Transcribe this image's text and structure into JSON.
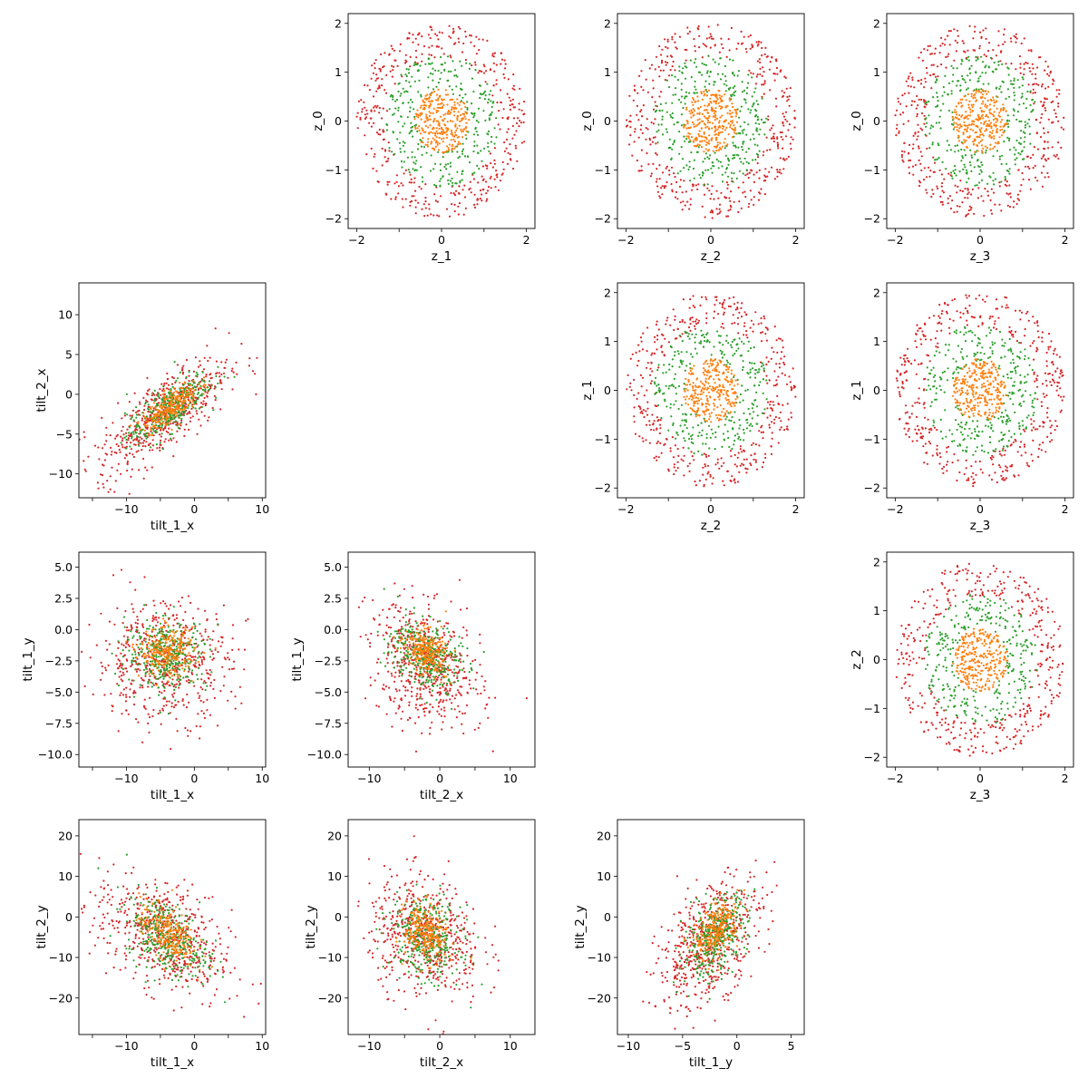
{
  "chart_data": [
    {
      "type": "scatter",
      "xlabel": "z_1",
      "ylabel": "z_0",
      "xlim": [
        -2.2,
        2.2
      ],
      "ylim": [
        -2.2,
        2.2
      ],
      "xticks": [
        -2,
        -1,
        0,
        1,
        2
      ],
      "yticks": [
        -2,
        -1,
        0,
        1,
        2
      ],
      "xtick_labels": [
        "−2",
        "0",
        "2"
      ],
      "xtick_label_values": [
        -2,
        0,
        2
      ],
      "ytick_labels": [
        "−2",
        "−1",
        "0",
        "1",
        "2"
      ],
      "ytick_label_values": [
        -2,
        -1,
        0,
        1,
        2
      ],
      "series_summary": [
        {
          "color": "#d62728",
          "shape": "ring",
          "center": [
            0,
            0
          ],
          "radius_range": [
            1.3,
            2.0
          ],
          "n": 420
        },
        {
          "color": "#2ca02c",
          "shape": "ring",
          "center": [
            0,
            0
          ],
          "radius_range": [
            0.6,
            1.35
          ],
          "n": 300
        },
        {
          "color": "#ff7f0e",
          "shape": "disk",
          "center": [
            0,
            0
          ],
          "radius_range": [
            0,
            0.65
          ],
          "n": 280
        }
      ]
    },
    {
      "type": "scatter",
      "xlabel": "z_2",
      "ylabel": "z_0",
      "xlim": [
        -2.2,
        2.2
      ],
      "ylim": [
        -2.2,
        2.2
      ],
      "xticks": [
        -2,
        -1,
        0,
        1,
        2
      ],
      "yticks": [
        -2,
        -1,
        0,
        1,
        2
      ],
      "xtick_labels": [
        "−2",
        "0",
        "2"
      ],
      "xtick_label_values": [
        -2,
        0,
        2
      ],
      "ytick_labels": [
        "−2",
        "−1",
        "0",
        "1",
        "2"
      ],
      "ytick_label_values": [
        -2,
        -1,
        0,
        1,
        2
      ],
      "series_summary": [
        {
          "color": "#d62728",
          "shape": "ring",
          "center": [
            0,
            0
          ],
          "radius_range": [
            1.3,
            2.0
          ],
          "n": 420
        },
        {
          "color": "#2ca02c",
          "shape": "ring",
          "center": [
            0,
            0
          ],
          "radius_range": [
            0.6,
            1.35
          ],
          "n": 300
        },
        {
          "color": "#ff7f0e",
          "shape": "disk",
          "center": [
            0,
            0
          ],
          "radius_range": [
            0,
            0.65
          ],
          "n": 280
        }
      ]
    },
    {
      "type": "scatter",
      "xlabel": "z_3",
      "ylabel": "z_0",
      "xlim": [
        -2.2,
        2.2
      ],
      "ylim": [
        -2.2,
        2.2
      ],
      "xticks": [
        -2,
        -1,
        0,
        1,
        2
      ],
      "yticks": [
        -2,
        -1,
        0,
        1,
        2
      ],
      "xtick_labels": [
        "−2",
        "0",
        "2"
      ],
      "xtick_label_values": [
        -2,
        0,
        2
      ],
      "ytick_labels": [
        "−2",
        "−1",
        "0",
        "1",
        "2"
      ],
      "ytick_label_values": [
        -2,
        -1,
        0,
        1,
        2
      ],
      "series_summary": [
        {
          "color": "#d62728",
          "shape": "ring",
          "center": [
            0,
            0
          ],
          "radius_range": [
            1.3,
            2.0
          ],
          "n": 420
        },
        {
          "color": "#2ca02c",
          "shape": "ring",
          "center": [
            0,
            0
          ],
          "radius_range": [
            0.6,
            1.35
          ],
          "n": 300
        },
        {
          "color": "#ff7f0e",
          "shape": "disk",
          "center": [
            0,
            0
          ],
          "radius_range": [
            0,
            0.65
          ],
          "n": 280
        }
      ]
    },
    {
      "type": "scatter",
      "xlabel": "tilt_1_x",
      "ylabel": "tilt_2_x",
      "xlim": [
        -17,
        10.5
      ],
      "ylim": [
        -13,
        14
      ],
      "xticks": [
        -15,
        -10,
        -5,
        0,
        5,
        10
      ],
      "yticks": [
        -10,
        -5,
        0,
        5,
        10
      ],
      "xtick_labels": [
        "−10",
        "0",
        "10"
      ],
      "xtick_label_values": [
        -10,
        0,
        10
      ],
      "ytick_labels": [
        "−10",
        "−5",
        "0",
        "5",
        "10"
      ],
      "ytick_label_values": [
        -10,
        -5,
        0,
        5,
        10
      ],
      "series_summary": [
        {
          "color": "#d62728",
          "shape": "gaussian",
          "center": [
            -4.5,
            -2.5
          ],
          "spread": [
            4.8,
            3.6
          ],
          "correlation": 0.75,
          "n": 550
        },
        {
          "color": "#2ca02c",
          "shape": "gaussian",
          "center": [
            -4,
            -2
          ],
          "spread": [
            3.0,
            2.3
          ],
          "correlation": 0.75,
          "n": 350
        },
        {
          "color": "#ff7f0e",
          "shape": "gaussian",
          "center": [
            -3.5,
            -1.5
          ],
          "spread": [
            2.0,
            1.5
          ],
          "correlation": 0.75,
          "n": 250
        }
      ]
    },
    {
      "type": "scatter",
      "xlabel": "z_2",
      "ylabel": "z_1",
      "xlim": [
        -2.2,
        2.2
      ],
      "ylim": [
        -2.2,
        2.2
      ],
      "xticks": [
        -2,
        -1,
        0,
        1,
        2
      ],
      "yticks": [
        -2,
        -1,
        0,
        1,
        2
      ],
      "xtick_labels": [
        "−2",
        "0",
        "2"
      ],
      "xtick_label_values": [
        -2,
        0,
        2
      ],
      "ytick_labels": [
        "−2",
        "−1",
        "0",
        "1",
        "2"
      ],
      "ytick_label_values": [
        -2,
        -1,
        0,
        1,
        2
      ],
      "series_summary": [
        {
          "color": "#d62728",
          "shape": "ring",
          "center": [
            0,
            0
          ],
          "radius_range": [
            1.3,
            2.0
          ],
          "n": 420
        },
        {
          "color": "#2ca02c",
          "shape": "ring",
          "center": [
            0,
            0
          ],
          "radius_range": [
            0.6,
            1.35
          ],
          "n": 300
        },
        {
          "color": "#ff7f0e",
          "shape": "disk",
          "center": [
            0,
            0
          ],
          "radius_range": [
            0,
            0.65
          ],
          "n": 280
        }
      ]
    },
    {
      "type": "scatter",
      "xlabel": "z_3",
      "ylabel": "z_1",
      "xlim": [
        -2.2,
        2.2
      ],
      "ylim": [
        -2.2,
        2.2
      ],
      "xticks": [
        -2,
        -1,
        0,
        1,
        2
      ],
      "yticks": [
        -2,
        -1,
        0,
        1,
        2
      ],
      "xtick_labels": [
        "−2",
        "0",
        "2"
      ],
      "xtick_label_values": [
        -2,
        0,
        2
      ],
      "ytick_labels": [
        "−2",
        "−1",
        "0",
        "1",
        "2"
      ],
      "ytick_label_values": [
        -2,
        -1,
        0,
        1,
        2
      ],
      "series_summary": [
        {
          "color": "#d62728",
          "shape": "ring",
          "center": [
            0,
            0
          ],
          "radius_range": [
            1.3,
            2.0
          ],
          "n": 420
        },
        {
          "color": "#2ca02c",
          "shape": "ring",
          "center": [
            0,
            0
          ],
          "radius_range": [
            0.6,
            1.35
          ],
          "n": 300
        },
        {
          "color": "#ff7f0e",
          "shape": "disk",
          "center": [
            0,
            0
          ],
          "radius_range": [
            0,
            0.65
          ],
          "n": 280
        }
      ]
    },
    {
      "type": "scatter",
      "xlabel": "tilt_1_x",
      "ylabel": "tilt_1_y",
      "xlim": [
        -17,
        10.5
      ],
      "ylim": [
        -11,
        6.2
      ],
      "xticks": [
        -15,
        -10,
        -5,
        0,
        5,
        10
      ],
      "yticks": [
        -10,
        -7.5,
        -5,
        -2.5,
        0,
        2.5,
        5
      ],
      "xtick_labels": [
        "−10",
        "0",
        "10"
      ],
      "xtick_label_values": [
        -10,
        0,
        10
      ],
      "ytick_labels": [
        "−10.0",
        "−7.5",
        "−5.0",
        "−2.5",
        "0.0",
        "2.5",
        "5.0"
      ],
      "ytick_label_values": [
        -10,
        -7.5,
        -5,
        -2.5,
        0,
        2.5,
        5
      ],
      "series_summary": [
        {
          "color": "#d62728",
          "shape": "gaussian",
          "center": [
            -4.5,
            -2.5
          ],
          "spread": [
            5.0,
            2.4
          ],
          "correlation": 0,
          "n": 550
        },
        {
          "color": "#2ca02c",
          "shape": "gaussian",
          "center": [
            -4,
            -2
          ],
          "spread": [
            3.0,
            1.4
          ],
          "correlation": 0,
          "n": 350
        },
        {
          "color": "#ff7f0e",
          "shape": "gaussian",
          "center": [
            -4,
            -1.8
          ],
          "spread": [
            2.0,
            0.95
          ],
          "correlation": 0,
          "n": 250
        }
      ]
    },
    {
      "type": "scatter",
      "xlabel": "tilt_2_x",
      "ylabel": "tilt_1_y",
      "xlim": [
        -13,
        13.5
      ],
      "ylim": [
        -11,
        6.2
      ],
      "xticks": [
        -10,
        -5,
        0,
        5,
        10
      ],
      "yticks": [
        -10,
        -7.5,
        -5,
        -2.5,
        0,
        2.5,
        5
      ],
      "xtick_labels": [
        "−10",
        "0",
        "10"
      ],
      "xtick_label_values": [
        -10,
        0,
        10
      ],
      "ytick_labels": [
        "−10.0",
        "−7.5",
        "−5.0",
        "−2.5",
        "0.0",
        "2.5",
        "5.0"
      ],
      "ytick_label_values": [
        -10,
        -7.5,
        -5,
        -2.5,
        0,
        2.5,
        5
      ],
      "series_summary": [
        {
          "color": "#d62728",
          "shape": "gaussian",
          "center": [
            -2,
            -3
          ],
          "spread": [
            4.0,
            2.5
          ],
          "correlation": -0.3,
          "n": 550
        },
        {
          "color": "#2ca02c",
          "shape": "gaussian",
          "center": [
            -2,
            -2
          ],
          "spread": [
            2.5,
            1.4
          ],
          "correlation": -0.3,
          "n": 350
        },
        {
          "color": "#ff7f0e",
          "shape": "gaussian",
          "center": [
            -2,
            -1.7
          ],
          "spread": [
            1.5,
            0.9
          ],
          "correlation": -0.3,
          "n": 250
        }
      ]
    },
    {
      "type": "scatter",
      "xlabel": "z_3",
      "ylabel": "z_2",
      "xlim": [
        -2.2,
        2.2
      ],
      "ylim": [
        -2.2,
        2.2
      ],
      "xticks": [
        -2,
        -1,
        0,
        1,
        2
      ],
      "yticks": [
        -2,
        -1,
        0,
        1,
        2
      ],
      "xtick_labels": [
        "−2",
        "0",
        "2"
      ],
      "xtick_label_values": [
        -2,
        0,
        2
      ],
      "ytick_labels": [
        "−2",
        "−1",
        "0",
        "1",
        "2"
      ],
      "ytick_label_values": [
        -2,
        -1,
        0,
        1,
        2
      ],
      "series_summary": [
        {
          "color": "#d62728",
          "shape": "ring",
          "center": [
            0,
            0
          ],
          "radius_range": [
            1.3,
            2.0
          ],
          "n": 420
        },
        {
          "color": "#2ca02c",
          "shape": "ring",
          "center": [
            0,
            0
          ],
          "radius_range": [
            0.6,
            1.35
          ],
          "n": 300
        },
        {
          "color": "#ff7f0e",
          "shape": "disk",
          "center": [
            0,
            0
          ],
          "radius_range": [
            0,
            0.65
          ],
          "n": 280
        }
      ]
    },
    {
      "type": "scatter",
      "xlabel": "tilt_1_x",
      "ylabel": "tilt_2_y",
      "xlim": [
        -17,
        10.5
      ],
      "ylim": [
        -29,
        24
      ],
      "xticks": [
        -15,
        -10,
        -5,
        0,
        5,
        10
      ],
      "yticks": [
        -20,
        -10,
        0,
        10,
        20
      ],
      "xtick_labels": [
        "−10",
        "0",
        "10"
      ],
      "xtick_label_values": [
        -10,
        0,
        10
      ],
      "ytick_labels": [
        "−20",
        "−10",
        "0",
        "10",
        "20"
      ],
      "ytick_label_values": [
        -20,
        -10,
        0,
        10,
        20
      ],
      "series_summary": [
        {
          "color": "#d62728",
          "shape": "gaussian",
          "center": [
            -4.5,
            -5
          ],
          "spread": [
            5.0,
            7.5
          ],
          "correlation": -0.45,
          "n": 550
        },
        {
          "color": "#2ca02c",
          "shape": "gaussian",
          "center": [
            -4,
            -5
          ],
          "spread": [
            3.0,
            5.0
          ],
          "correlation": -0.45,
          "n": 350
        },
        {
          "color": "#ff7f0e",
          "shape": "gaussian",
          "center": [
            -4,
            -4
          ],
          "spread": [
            2.0,
            3.5
          ],
          "correlation": -0.45,
          "n": 250
        }
      ]
    },
    {
      "type": "scatter",
      "xlabel": "tilt_2_x",
      "ylabel": "tilt_2_y",
      "xlim": [
        -13,
        13.5
      ],
      "ylim": [
        -29,
        24
      ],
      "xticks": [
        -10,
        -5,
        0,
        5,
        10
      ],
      "yticks": [
        -20,
        -10,
        0,
        10,
        20
      ],
      "xtick_labels": [
        "−10",
        "0",
        "10"
      ],
      "xtick_label_values": [
        -10,
        0,
        10
      ],
      "ytick_labels": [
        "−20",
        "−10",
        "0",
        "10",
        "20"
      ],
      "ytick_label_values": [
        -20,
        -10,
        0,
        10,
        20
      ],
      "series_summary": [
        {
          "color": "#d62728",
          "shape": "gaussian",
          "center": [
            -2,
            -5
          ],
          "spread": [
            4.0,
            7.5
          ],
          "correlation": -0.2,
          "n": 550
        },
        {
          "color": "#2ca02c",
          "shape": "gaussian",
          "center": [
            -2,
            -5
          ],
          "spread": [
            2.5,
            5.0
          ],
          "correlation": -0.2,
          "n": 350
        },
        {
          "color": "#ff7f0e",
          "shape": "gaussian",
          "center": [
            -2,
            -4
          ],
          "spread": [
            1.5,
            3.5
          ],
          "correlation": -0.2,
          "n": 250
        }
      ]
    },
    {
      "type": "scatter",
      "xlabel": "tilt_1_y",
      "ylabel": "tilt_2_y",
      "xlim": [
        -11,
        6.2
      ],
      "ylim": [
        -29,
        24
      ],
      "xticks": [
        -10,
        -5,
        0,
        5
      ],
      "yticks": [
        -20,
        -10,
        0,
        10,
        20
      ],
      "xtick_labels": [
        "−10",
        "−5",
        "0",
        "5"
      ],
      "xtick_label_values": [
        -10,
        -5,
        0,
        5
      ],
      "ytick_labels": [
        "−20",
        "−10",
        "0",
        "10",
        "20"
      ],
      "ytick_label_values": [
        -20,
        -10,
        0,
        10,
        20
      ],
      "series_summary": [
        {
          "color": "#d62728",
          "shape": "gaussian",
          "center": [
            -2.5,
            -6
          ],
          "spread": [
            2.4,
            8.0
          ],
          "correlation": 0.5,
          "n": 550
        },
        {
          "color": "#2ca02c",
          "shape": "gaussian",
          "center": [
            -2,
            -5
          ],
          "spread": [
            1.5,
            5.0
          ],
          "correlation": 0.5,
          "n": 350
        },
        {
          "color": "#ff7f0e",
          "shape": "gaussian",
          "center": [
            -1.8,
            -3
          ],
          "spread": [
            1.0,
            3.5
          ],
          "correlation": 0.5,
          "n": 250
        }
      ]
    }
  ]
}
